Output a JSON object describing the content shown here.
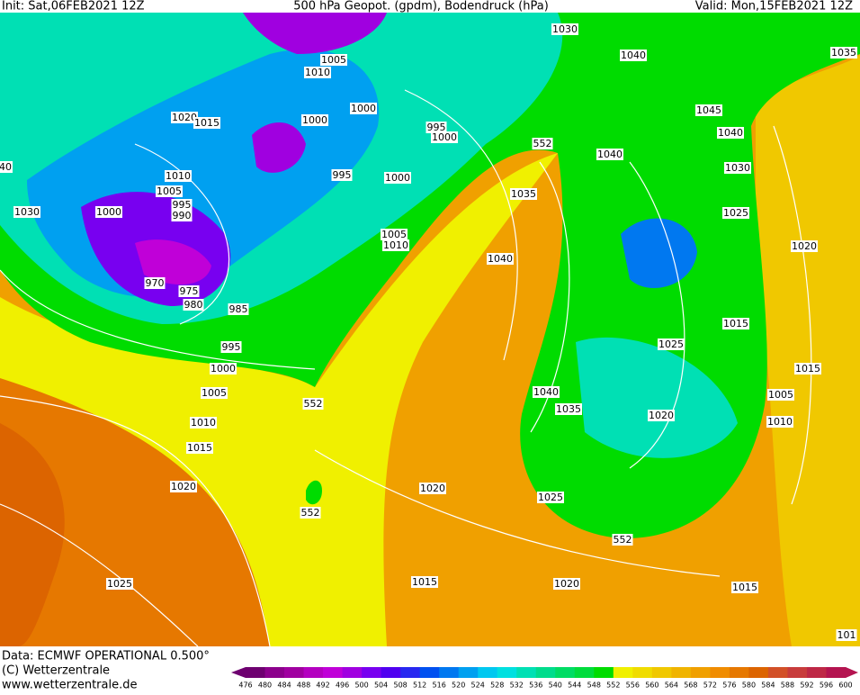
{
  "header": {
    "init": "Init: Sat,06FEB2021 12Z",
    "title": "500 hPa Geopot. (gpdm), Bodendruck (hPa)",
    "valid": "Valid: Mon,15FEB2021 12Z"
  },
  "footer": {
    "data": "Data: ECMWF OPERATIONAL 0.500°",
    "copyright": "(C) Wetterzentrale",
    "url": "www.wetterzentrale.de"
  },
  "isobar_labels": [
    "1030",
    "1005",
    "1010",
    "1040",
    "1035",
    "1020",
    "1015",
    "1000",
    "1000",
    "995",
    "1000",
    "552",
    "1045",
    "1040",
    "1040",
    "1030",
    "1010",
    "1005",
    "995",
    "990",
    "995",
    "1000",
    "1030",
    "1000",
    "1035",
    "1025",
    "1005",
    "1010",
    "1020",
    "1040",
    "970",
    "975",
    "980",
    "985",
    "1015",
    "1025",
    "995",
    "1000",
    "1015",
    "1040",
    "1005",
    "1005",
    "552",
    "1035",
    "1020",
    "1010",
    "1010",
    "1015",
    "1020",
    "1020",
    "1025",
    "552",
    "552",
    "1025",
    "1015",
    "1020",
    "1015",
    "40",
    "101"
  ],
  "scale": {
    "labels": [
      476,
      480,
      484,
      488,
      492,
      496,
      500,
      504,
      508,
      512,
      516,
      520,
      524,
      528,
      532,
      536,
      540,
      544,
      548,
      552,
      556,
      560,
      564,
      568,
      572,
      576,
      580,
      584,
      588,
      592,
      596,
      600
    ],
    "colors": [
      "#6e0070",
      "#8c008c",
      "#a000a0",
      "#b400c0",
      "#c000d8",
      "#a000e0",
      "#7800f0",
      "#5000f0",
      "#2828f0",
      "#0050f0",
      "#0078f0",
      "#00a0f0",
      "#00c8f0",
      "#00e0e0",
      "#00e0b4",
      "#00dc8c",
      "#00dc64",
      "#00dc3c",
      "#00dc00",
      "#f0f000",
      "#f0dc00",
      "#f0c800",
      "#f0b400",
      "#f0a000",
      "#f08c00",
      "#e67800",
      "#dc6400",
      "#d25028",
      "#c83c3c",
      "#be2846",
      "#b41450"
    ]
  }
}
